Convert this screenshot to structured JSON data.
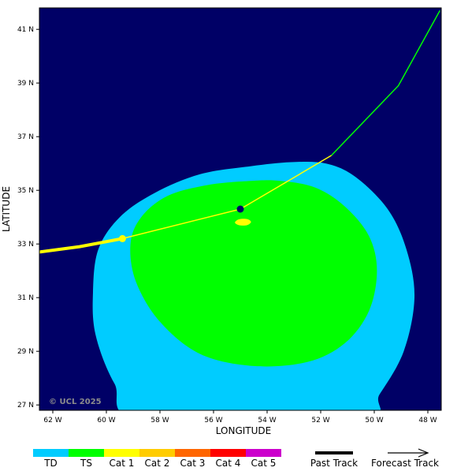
{
  "map": {
    "background_color": "#000066",
    "copyright": "© UCL 2025",
    "x_axis_label": "LONGITUDE",
    "y_axis_label": "LATITUDE",
    "x_ticks": [
      {
        "value": -62,
        "label": "62 W"
      },
      {
        "value": -60,
        "label": "60 W"
      },
      {
        "value": -58,
        "label": "58 W"
      },
      {
        "value": -56,
        "label": "56 W"
      },
      {
        "value": -54,
        "label": "54 W"
      },
      {
        "value": -52,
        "label": "52 W"
      },
      {
        "value": -50,
        "label": "50 W"
      },
      {
        "value": -48,
        "label": "48 W"
      }
    ],
    "y_ticks": [
      {
        "value": 41,
        "label": "41 N"
      },
      {
        "value": 39,
        "label": "39 N"
      },
      {
        "value": 37,
        "label": "37 N"
      },
      {
        "value": 35,
        "label": "35 N"
      },
      {
        "value": 33,
        "label": "33 N"
      },
      {
        "value": 31,
        "label": "31 N"
      },
      {
        "value": 29,
        "label": "29 N"
      },
      {
        "value": 27,
        "label": "27 N"
      }
    ],
    "extent": {
      "lon_min": -62.5,
      "lon_max": -47.5,
      "lat_min": 26.8,
      "lat_max": 41.8
    }
  },
  "wind_fields": {
    "td": {
      "category": "TD",
      "color": "#00ccff",
      "boundary": [
        [
          -53.1,
          36.05
        ],
        [
          -51.8,
          36.0
        ],
        [
          -50.7,
          35.5
        ],
        [
          -49.5,
          34.3
        ],
        [
          -48.8,
          32.8
        ],
        [
          -48.5,
          31.0
        ],
        [
          -48.9,
          29.0
        ],
        [
          -49.8,
          27.4
        ],
        [
          -50.6,
          26.4
        ],
        [
          -58.6,
          26.4
        ],
        [
          -59.7,
          27.8
        ],
        [
          -60.4,
          29.6
        ],
        [
          -60.5,
          31.2
        ],
        [
          -60.3,
          32.8
        ],
        [
          -59.5,
          34.0
        ],
        [
          -58.2,
          34.9
        ],
        [
          -56.5,
          35.6
        ],
        [
          -54.6,
          35.9
        ]
      ]
    },
    "ts": {
      "category": "TS",
      "color": "#00ff00",
      "boundary": [
        [
          -53.5,
          35.35
        ],
        [
          -52.2,
          35.1
        ],
        [
          -51.1,
          34.4
        ],
        [
          -50.2,
          33.3
        ],
        [
          -49.9,
          32.0
        ],
        [
          -50.2,
          30.5
        ],
        [
          -51.1,
          29.3
        ],
        [
          -52.5,
          28.6
        ],
        [
          -54.5,
          28.45
        ],
        [
          -56.5,
          28.9
        ],
        [
          -58.0,
          30.1
        ],
        [
          -58.9,
          31.6
        ],
        [
          -59.1,
          33.0
        ],
        [
          -58.7,
          34.0
        ],
        [
          -57.7,
          34.8
        ],
        [
          -56.2,
          35.2
        ],
        [
          -54.6,
          35.35
        ]
      ]
    },
    "cat1": {
      "category": "Cat 1",
      "color": "#ffff00",
      "boundary": [
        [
          -55.05,
          33.92
        ],
        [
          -54.75,
          33.93
        ],
        [
          -54.6,
          33.82
        ],
        [
          -54.75,
          33.7
        ],
        [
          -55.05,
          33.7
        ],
        [
          -55.2,
          33.8
        ]
      ]
    }
  },
  "tracks": {
    "past": {
      "points": [
        [
          -62.5,
          32.7
        ],
        [
          -61.0,
          32.9
        ],
        [
          -59.4,
          33.2
        ]
      ],
      "color": "#ffff00"
    },
    "forecast": {
      "points": [
        [
          -59.4,
          33.2
        ],
        [
          -55.0,
          34.3
        ],
        [
          -51.6,
          36.3
        ]
      ],
      "color": "#ffff00"
    },
    "forecast_extended": {
      "points": [
        [
          -51.6,
          36.3
        ],
        [
          -49.1,
          38.9
        ],
        [
          -47.55,
          41.7
        ]
      ],
      "color": "#00ff00"
    },
    "markers": [
      {
        "name": "past-position-marker",
        "lon": -59.4,
        "lat": 33.2,
        "color": "#ffff00"
      },
      {
        "name": "current-position-marker",
        "lon": -55.0,
        "lat": 34.3,
        "color": "#000066"
      }
    ]
  },
  "legend": {
    "categories": [
      {
        "label": "TD",
        "color": "#00ccff"
      },
      {
        "label": "TS",
        "color": "#00ff00"
      },
      {
        "label": "Cat 1",
        "color": "#ffff00"
      },
      {
        "label": "Cat 2",
        "color": "#ffcc00"
      },
      {
        "label": "Cat 3",
        "color": "#ff6600"
      },
      {
        "label": "Cat 4",
        "color": "#ff0000"
      },
      {
        "label": "Cat 5",
        "color": "#cc00cc"
      }
    ],
    "past_track_label": "Past Track",
    "forecast_track_label": "Forecast Track"
  }
}
